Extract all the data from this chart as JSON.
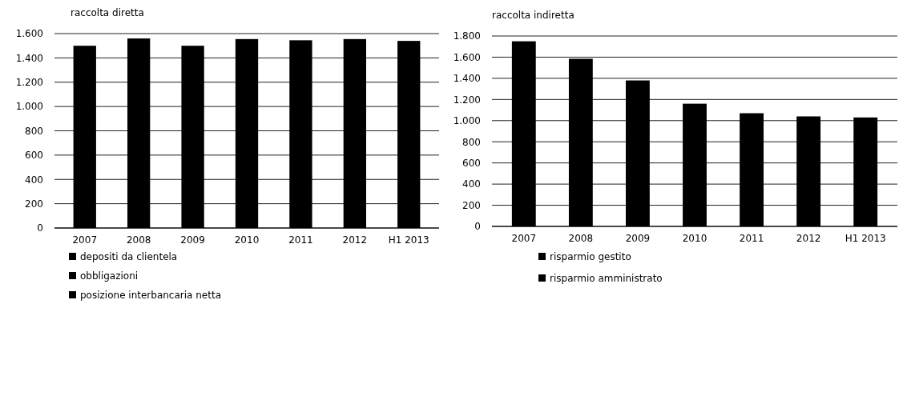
{
  "chart_data": [
    {
      "type": "bar",
      "title": "raccolta diretta",
      "categories": [
        "2007",
        "2008",
        "2009",
        "2010",
        "2011",
        "2012",
        "H1 2013"
      ],
      "series": [
        {
          "color": "#000000",
          "values": [
            1500,
            1560,
            1500,
            1555,
            1545,
            1555,
            1540
          ]
        }
      ],
      "ylim": [
        0,
        1600
      ],
      "yticks": [
        {
          "value": 0,
          "label": "0"
        },
        {
          "value": 200,
          "label": "200"
        },
        {
          "value": 400,
          "label": "400"
        },
        {
          "value": 600,
          "label": "600"
        },
        {
          "value": 800,
          "label": "800"
        },
        {
          "value": 1000,
          "label": "1.000"
        },
        {
          "value": 1200,
          "label": "1.200"
        },
        {
          "value": 1400,
          "label": "1.400"
        },
        {
          "value": 1600,
          "label": "1.600"
        }
      ],
      "grid": "y",
      "annotations": [
        "depositi da clientela",
        "obbligazioni",
        "posizione interbancaria netta"
      ]
    },
    {
      "type": "bar",
      "title": "raccolta indiretta",
      "categories": [
        "2007",
        "2008",
        "2009",
        "2010",
        "2011",
        "2012",
        "H1 2013"
      ],
      "series": [
        {
          "color": "#000000",
          "values": [
            1750,
            1585,
            1380,
            1160,
            1070,
            1040,
            1030
          ]
        }
      ],
      "ylim": [
        0,
        1800
      ],
      "yticks": [
        {
          "value": 0,
          "label": "0"
        },
        {
          "value": 200,
          "label": "200"
        },
        {
          "value": 400,
          "label": "400"
        },
        {
          "value": 600,
          "label": "600"
        },
        {
          "value": 800,
          "label": "800"
        },
        {
          "value": 1000,
          "label": "1.000"
        },
        {
          "value": 1200,
          "label": "1.200"
        },
        {
          "value": 1400,
          "label": "1.400"
        },
        {
          "value": 1600,
          "label": "1.600"
        },
        {
          "value": 1800,
          "label": "1.800"
        }
      ],
      "grid": "y",
      "annotations": [
        "risparmio gestito",
        "risparmio amministrato"
      ]
    }
  ]
}
